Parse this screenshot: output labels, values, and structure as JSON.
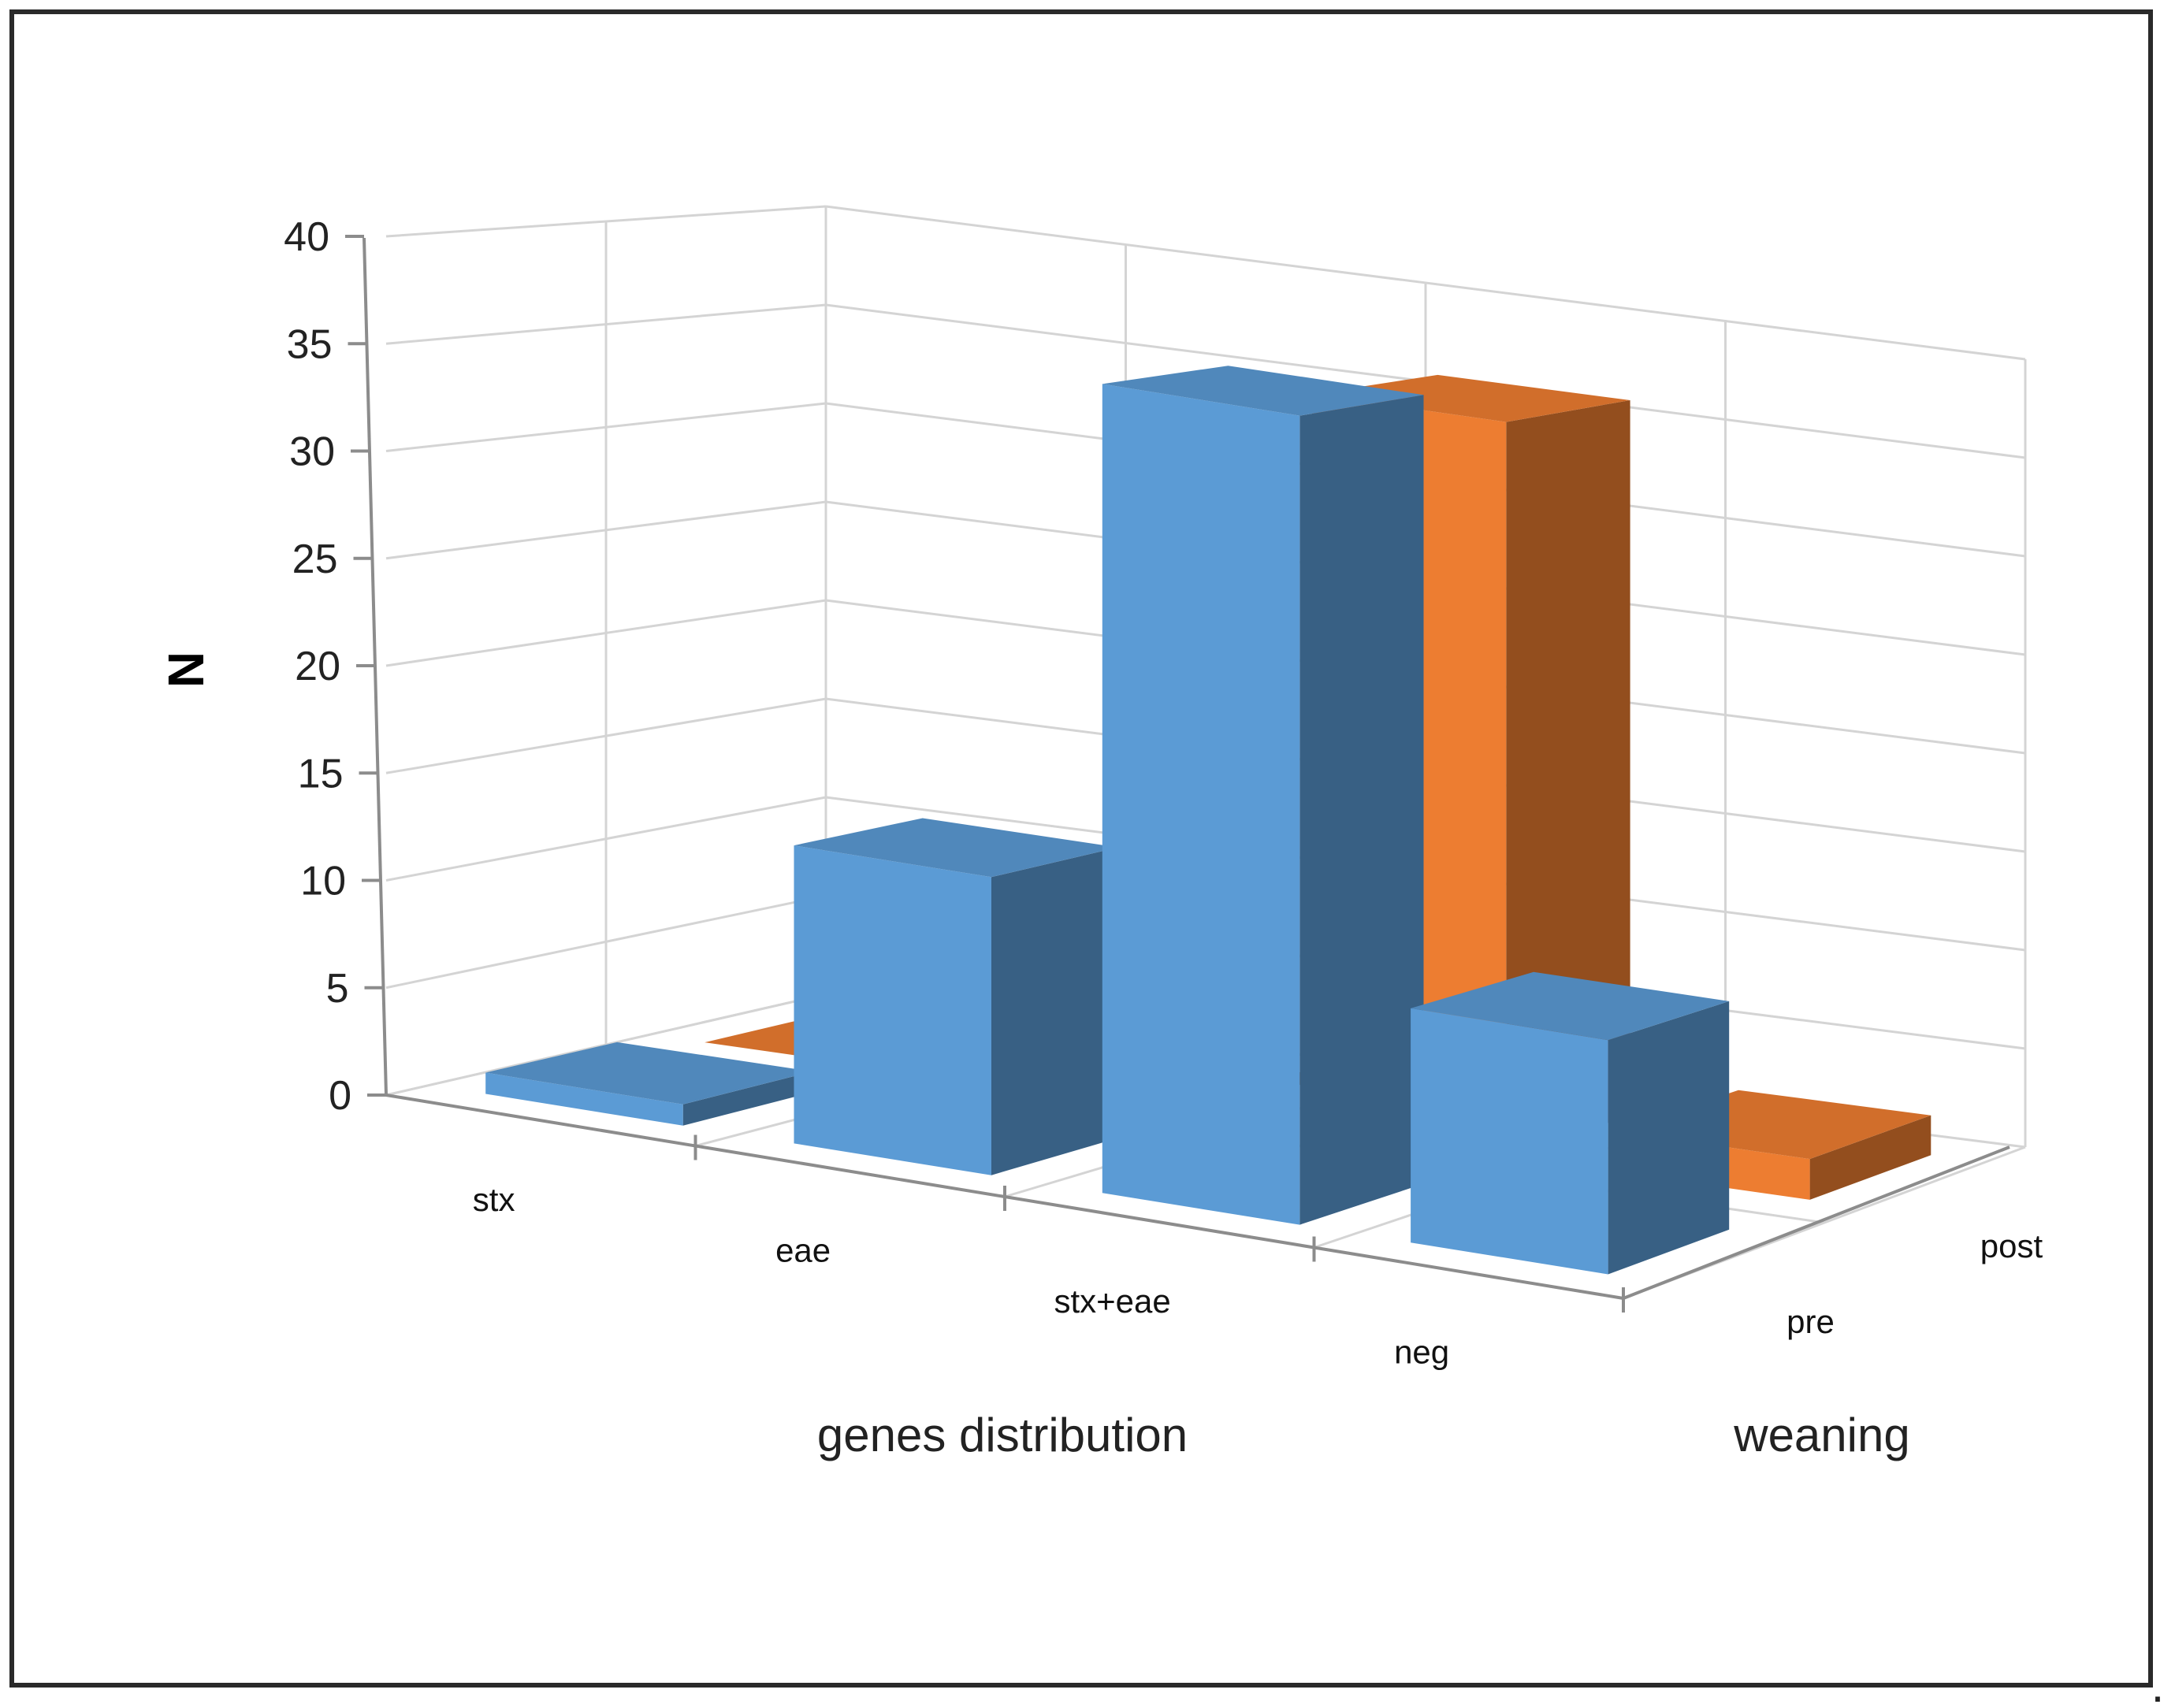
{
  "chart_data": {
    "type": "bar",
    "style": "3d-column",
    "title": "",
    "ylabel": "N",
    "xlabel": "genes distribution",
    "zlabel": "weaning",
    "ylim": [
      0,
      40
    ],
    "yticks": [
      "0",
      "5",
      "10",
      "15",
      "20",
      "25",
      "30",
      "35",
      "40"
    ],
    "categories": [
      "stx",
      "eae",
      "stx+eae",
      "neg"
    ],
    "series": [
      {
        "name": "pre",
        "values": [
          1,
          14,
          38,
          11
        ],
        "color": "#5b9bd5"
      },
      {
        "name": "post",
        "values": [
          0,
          0,
          36,
          2
        ],
        "color": "#ed7d31"
      }
    ],
    "grid": true,
    "legend": "none"
  },
  "trailing_mark": "."
}
